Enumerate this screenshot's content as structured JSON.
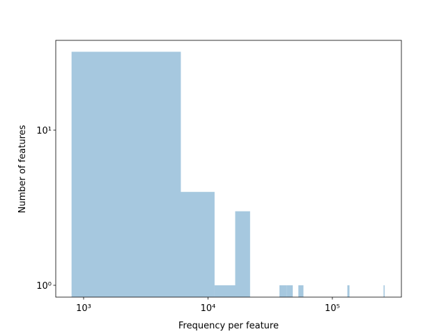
{
  "chart_data": {
    "type": "histogram",
    "xlabel": "Frequency per feature",
    "ylabel": "Number of features",
    "bins": [
      800,
      6050,
      11300,
      16550,
      21800,
      27050,
      32300,
      37550,
      42800,
      48050,
      53300,
      58550,
      63800,
      69050,
      74300,
      79550,
      84800,
      90050,
      95300,
      100550,
      105800,
      111050,
      116300,
      121550,
      126800,
      132050,
      137300,
      142550,
      147800,
      153050,
      158300,
      163550,
      168800,
      174050,
      179300,
      184550,
      189800,
      195050,
      200300,
      205550,
      210800,
      216050,
      221300,
      226550,
      231800,
      237050,
      242300,
      247550,
      252800,
      258050,
      263300
    ],
    "values": [
      32,
      4,
      1,
      3,
      0,
      0,
      0,
      1,
      1,
      0,
      1,
      0,
      0,
      0,
      0,
      0,
      0,
      0,
      0,
      0,
      0,
      0,
      0,
      0,
      0,
      1,
      0,
      0,
      0,
      0,
      0,
      0,
      0,
      0,
      0,
      0,
      0,
      0,
      0,
      0,
      0,
      0,
      0,
      0,
      0,
      0,
      0,
      0,
      0,
      1
    ],
    "color": "#a6c8df",
    "xscale": "log",
    "yscale": "log",
    "xlim": [
      597,
      359000
    ],
    "ylim": [
      0.839,
      37.9
    ],
    "xticks": [
      {
        "value": 1000,
        "label": "10³"
      },
      {
        "value": 10000,
        "label": "10⁴"
      },
      {
        "value": 100000,
        "label": "10⁵"
      }
    ],
    "yticks": [
      {
        "value": 1,
        "label": "10⁰"
      },
      {
        "value": 10,
        "label": "10¹"
      }
    ]
  }
}
